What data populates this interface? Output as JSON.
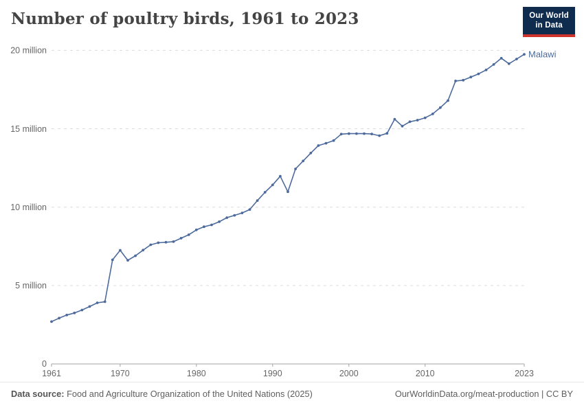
{
  "header": {
    "title": "Number of poultry birds, 1961 to 2023",
    "logo": {
      "line1": "Our World",
      "line2": "in Data",
      "bg_color": "#0F2B4E",
      "accent_color": "#CE342B"
    }
  },
  "chart_data": {
    "type": "line",
    "title": "Number of poultry birds, 1961 to 2023",
    "entity_label": "Malawi",
    "line_color": "#4C6A9C",
    "grid": "horizontal-dashed",
    "grid_color": "#dcdcdc",
    "axis_color": "#a3a3a3",
    "tick_label_color": "#666666",
    "legend_position": "end-of-line",
    "unit_label": "million",
    "ylim_millions": [
      0,
      20
    ],
    "y_ticks": [
      {
        "value_millions": 0,
        "label": "0"
      },
      {
        "value_millions": 5,
        "label": "5 million"
      },
      {
        "value_millions": 10,
        "label": "10 million"
      },
      {
        "value_millions": 15,
        "label": "15 million"
      },
      {
        "value_millions": 20,
        "label": "20 million"
      }
    ],
    "x_ticks": [
      1961,
      1970,
      1980,
      1990,
      2000,
      2010,
      2023
    ],
    "x_range": [
      1961,
      2023
    ],
    "series": [
      {
        "name": "Malawi",
        "years": [
          1961,
          1962,
          1963,
          1964,
          1965,
          1966,
          1967,
          1968,
          1969,
          1970,
          1971,
          1972,
          1973,
          1974,
          1975,
          1976,
          1977,
          1978,
          1979,
          1980,
          1981,
          1982,
          1983,
          1984,
          1985,
          1986,
          1987,
          1988,
          1989,
          1990,
          1991,
          1992,
          1993,
          1994,
          1995,
          1996,
          1997,
          1998,
          1999,
          2000,
          2001,
          2002,
          2003,
          2004,
          2005,
          2006,
          2007,
          2008,
          2009,
          2010,
          2011,
          2012,
          2013,
          2014,
          2015,
          2016,
          2017,
          2018,
          2019,
          2020,
          2021,
          2022,
          2023
        ],
        "values_millions": [
          2.7,
          2.92,
          3.12,
          3.25,
          3.44,
          3.66,
          3.9,
          3.97,
          6.64,
          7.25,
          6.61,
          6.9,
          7.26,
          7.6,
          7.73,
          7.76,
          7.8,
          8.02,
          8.24,
          8.55,
          8.75,
          8.87,
          9.07,
          9.33,
          9.48,
          9.63,
          9.85,
          10.42,
          10.95,
          11.42,
          11.97,
          10.98,
          12.44,
          12.95,
          13.45,
          13.93,
          14.08,
          14.25,
          14.66,
          14.69,
          14.69,
          14.69,
          14.67,
          14.56,
          14.71,
          15.61,
          15.17,
          15.45,
          15.55,
          15.7,
          15.95,
          16.35,
          16.8,
          18.05,
          18.1,
          18.3,
          18.5,
          18.75,
          19.1,
          19.5,
          19.15,
          19.45,
          19.75
        ]
      }
    ]
  },
  "footer": {
    "source_bold": "Data source:",
    "source_rest": " Food and Agriculture Organization of the United Nations (2025)",
    "link": "OurWorldinData.org/meat-production | CC BY"
  }
}
